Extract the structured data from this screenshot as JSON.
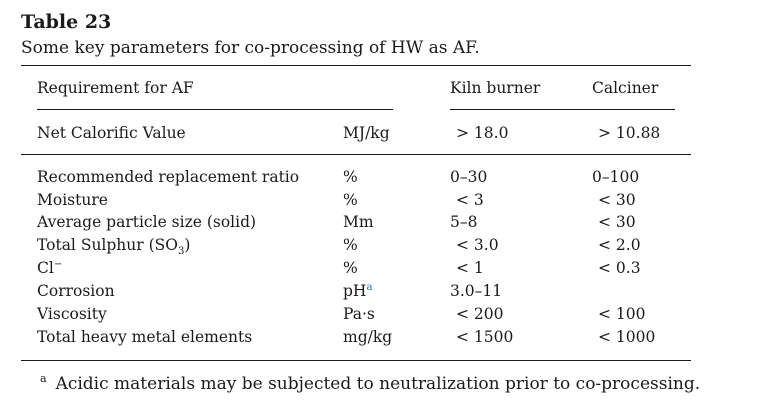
{
  "table": {
    "title": "Table 23",
    "caption": "Some key parameters for co-processing of HW as AF.",
    "headers": {
      "requirement": "Requirement for AF",
      "kiln": "Kiln burner",
      "calciner": "Calciner"
    },
    "first_row": {
      "name": "Net Calorific Value",
      "unit": "MJ/kg",
      "kiln": "> 18.0",
      "calciner": "> 10.88"
    },
    "rows": [
      {
        "name": "Recommended replacement ratio",
        "unit": "%",
        "kiln": "0–30",
        "calciner": "0–100"
      },
      {
        "name": "Moisture",
        "unit": "%",
        "kiln": "< 3",
        "calciner": "< 30"
      },
      {
        "name": "Average particle size (solid)",
        "unit": "Mm",
        "kiln": "5–8",
        "calciner": "< 30"
      },
      {
        "name_main": "Total Sulphur (SO",
        "name_sub": "3",
        "name_end": ")",
        "unit": "%",
        "kiln": "< 3.0",
        "calciner": "< 2.0"
      },
      {
        "name_main": "Cl",
        "name_sup": "−",
        "unit": "%",
        "kiln": "< 1",
        "calciner": "< 0.3"
      },
      {
        "name": "Corrosion",
        "unit_main": "pH",
        "unit_sup": "a",
        "kiln": "3.0–11",
        "calciner": ""
      },
      {
        "name": "Viscosity",
        "unit": "Pa·s",
        "kiln": "< 200",
        "calciner": "< 100"
      },
      {
        "name": "Total heavy metal elements",
        "unit": "mg/kg",
        "kiln": "< 1500",
        "calciner": "< 1000"
      }
    ],
    "footnote": {
      "mark": "a",
      "text": "Acidic materials may be subjected to neutralization prior to co-processing."
    }
  }
}
